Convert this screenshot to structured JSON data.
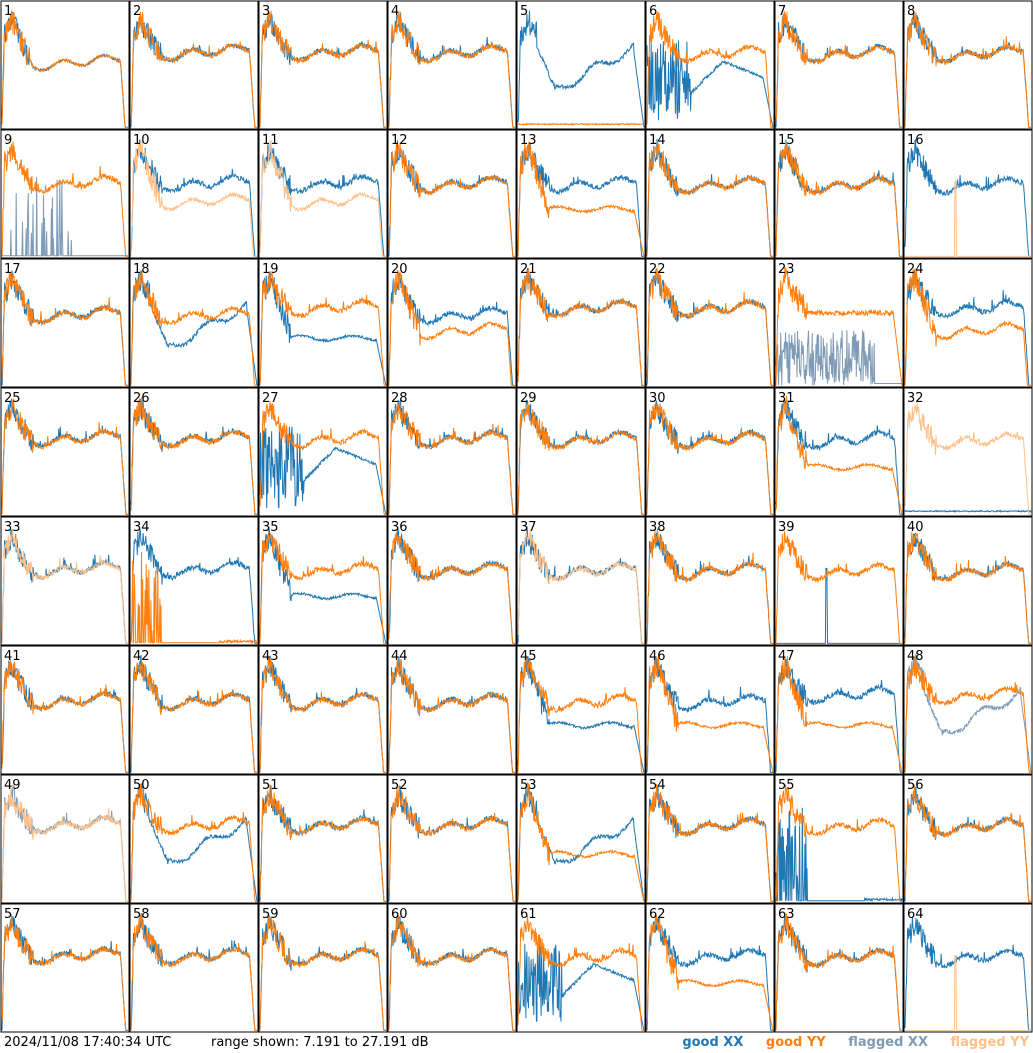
{
  "chart_data": {
    "type": "line",
    "layout": "8x8 small multiples",
    "panels": [
      {
        "id": "1",
        "xx": "normal-drop",
        "yy": "normal-drop"
      },
      {
        "id": "2",
        "xx": "normal",
        "yy": "normal"
      },
      {
        "id": "3",
        "xx": "normal",
        "yy": "normal"
      },
      {
        "id": "4",
        "xx": "normal",
        "yy": "normal"
      },
      {
        "id": "5",
        "xx": "dip",
        "yy": "flat-low"
      },
      {
        "id": "6",
        "xx": "noisy-dip",
        "yy": "normal"
      },
      {
        "id": "7",
        "xx": "normal",
        "yy": "normal"
      },
      {
        "id": "8",
        "xx": "normal",
        "yy": "normal"
      },
      {
        "id": "9",
        "xx": "flagged-spikes",
        "yy": "normal"
      },
      {
        "id": "10",
        "xx": "normal",
        "yy": "flagged-low"
      },
      {
        "id": "11",
        "xx": "normal",
        "yy": "flagged-low"
      },
      {
        "id": "12",
        "xx": "normal",
        "yy": "normal"
      },
      {
        "id": "13",
        "xx": "normal",
        "yy": "low-drop"
      },
      {
        "id": "14",
        "xx": "normal",
        "yy": "normal"
      },
      {
        "id": "15",
        "xx": "normal",
        "yy": "normal"
      },
      {
        "id": "16",
        "xx": "normal",
        "yy": "flagged-spike"
      },
      {
        "id": "17",
        "xx": "normal",
        "yy": "normal"
      },
      {
        "id": "18",
        "xx": "dip",
        "yy": "normal"
      },
      {
        "id": "19",
        "xx": "low-drop",
        "yy": "normal"
      },
      {
        "id": "20",
        "xx": "normal",
        "yy": "low"
      },
      {
        "id": "21",
        "xx": "normal",
        "yy": "normal"
      },
      {
        "id": "22",
        "xx": "normal",
        "yy": "normal"
      },
      {
        "id": "23",
        "xx": "flagged-noise",
        "yy": "early"
      },
      {
        "id": "24",
        "xx": "normal",
        "yy": "low"
      },
      {
        "id": "25",
        "xx": "normal",
        "yy": "normal"
      },
      {
        "id": "26",
        "xx": "normal",
        "yy": "normal"
      },
      {
        "id": "27",
        "xx": "noisy-dip",
        "yy": "normal"
      },
      {
        "id": "28",
        "xx": "normal",
        "yy": "normal"
      },
      {
        "id": "29",
        "xx": "normal",
        "yy": "normal"
      },
      {
        "id": "30",
        "xx": "normal",
        "yy": "normal"
      },
      {
        "id": "31",
        "xx": "normal",
        "yy": "low-drop"
      },
      {
        "id": "32",
        "xx": "flat-low",
        "yy": "flagged-normal"
      },
      {
        "id": "33",
        "xx": "normal",
        "yy": "flagged-normal"
      },
      {
        "id": "34",
        "xx": "normal",
        "yy": "spikes-low"
      },
      {
        "id": "35",
        "xx": "low-drop",
        "yy": "normal"
      },
      {
        "id": "36",
        "xx": "normal",
        "yy": "normal"
      },
      {
        "id": "37",
        "xx": "normal",
        "yy": "flagged-normal"
      },
      {
        "id": "38",
        "xx": "normal",
        "yy": "normal"
      },
      {
        "id": "39",
        "xx": "spike",
        "yy": "normal"
      },
      {
        "id": "40",
        "xx": "normal",
        "yy": "normal"
      },
      {
        "id": "41",
        "xx": "normal",
        "yy": "normal"
      },
      {
        "id": "42",
        "xx": "normal",
        "yy": "normal"
      },
      {
        "id": "43",
        "xx": "normal",
        "yy": "normal"
      },
      {
        "id": "44",
        "xx": "normal",
        "yy": "normal"
      },
      {
        "id": "45",
        "xx": "low-drop",
        "yy": "normal"
      },
      {
        "id": "46",
        "xx": "normal",
        "yy": "low-drop"
      },
      {
        "id": "47",
        "xx": "normal",
        "yy": "low-drop"
      },
      {
        "id": "48",
        "xx": "flagged-dip",
        "yy": "normal"
      },
      {
        "id": "49",
        "xx": "flagged-normal",
        "yy": "flagged-normal"
      },
      {
        "id": "50",
        "xx": "dip",
        "yy": "normal"
      },
      {
        "id": "51",
        "xx": "normal",
        "yy": "normal"
      },
      {
        "id": "52",
        "xx": "normal",
        "yy": "normal"
      },
      {
        "id": "53",
        "xx": "dip",
        "yy": "low-drop"
      },
      {
        "id": "54",
        "xx": "normal",
        "yy": "normal"
      },
      {
        "id": "55",
        "xx": "spikes-low",
        "yy": "normal"
      },
      {
        "id": "56",
        "xx": "normal",
        "yy": "normal"
      },
      {
        "id": "57",
        "xx": "normal",
        "yy": "normal"
      },
      {
        "id": "58",
        "xx": "normal",
        "yy": "normal"
      },
      {
        "id": "59",
        "xx": "normal",
        "yy": "normal"
      },
      {
        "id": "60",
        "xx": "normal",
        "yy": "normal"
      },
      {
        "id": "61",
        "xx": "noisy-dip",
        "yy": "normal"
      },
      {
        "id": "62",
        "xx": "normal",
        "yy": "low-drop"
      },
      {
        "id": "63",
        "xx": "normal",
        "yy": "normal"
      },
      {
        "id": "64",
        "xx": "normal",
        "yy": "flagged-spike"
      }
    ],
    "range_db": [
      7.191,
      27.191
    ]
  },
  "footer": {
    "timestamp": "2024/11/08 17:40:34 UTC",
    "range_text": "range shown: 7.191 to 27.191 dB"
  },
  "legend": {
    "good_xx": "good XX",
    "good_yy": "good YY",
    "flagged_xx": "flagged XX",
    "flagged_yy": "flagged YY"
  },
  "colors": {
    "good_xx": "#1f77b4",
    "good_yy": "#ff7f0e",
    "flagged_xx": "#7f9bb5",
    "flagged_yy": "#ffc08a"
  }
}
